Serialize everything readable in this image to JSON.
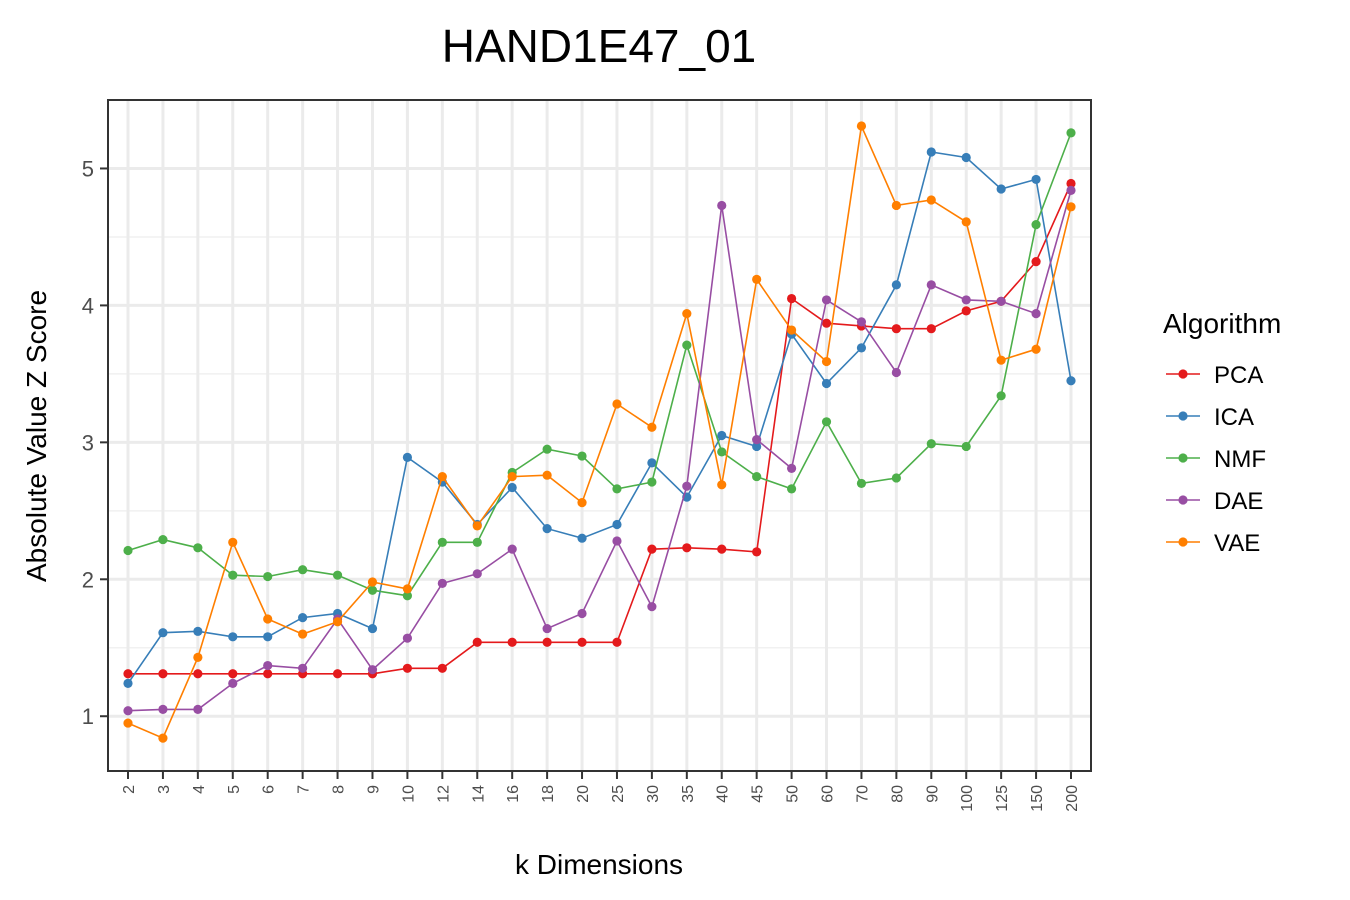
{
  "chart_data": {
    "type": "line",
    "title": "HAND1E47_01",
    "xlabel": "k Dimensions",
    "ylabel": "Absolute Value Z Score",
    "categories": [
      "2",
      "3",
      "4",
      "5",
      "6",
      "7",
      "8",
      "9",
      "10",
      "12",
      "14",
      "16",
      "18",
      "20",
      "25",
      "30",
      "35",
      "40",
      "45",
      "50",
      "60",
      "70",
      "80",
      "90",
      "100",
      "125",
      "150",
      "200"
    ],
    "ylim": [
      0.6,
      5.5
    ],
    "yticks": [
      1,
      2,
      3,
      4,
      5
    ],
    "grid": true,
    "legend": {
      "title": "Algorithm",
      "placement": "right"
    },
    "series": [
      {
        "name": "PCA",
        "color": "#e41a1c",
        "values": [
          1.31,
          1.31,
          1.31,
          1.31,
          1.31,
          1.31,
          1.31,
          1.31,
          1.35,
          1.35,
          1.54,
          1.54,
          1.54,
          1.54,
          1.54,
          2.22,
          2.23,
          2.22,
          2.2,
          4.05,
          3.87,
          3.85,
          3.83,
          3.83,
          3.96,
          4.03,
          4.32,
          4.89
        ]
      },
      {
        "name": "ICA",
        "color": "#377eb8",
        "values": [
          1.24,
          1.61,
          1.62,
          1.58,
          1.58,
          1.72,
          1.75,
          1.64,
          2.89,
          2.71,
          2.4,
          2.67,
          2.37,
          2.3,
          2.4,
          2.85,
          2.6,
          3.05,
          2.97,
          3.79,
          3.43,
          3.69,
          4.15,
          5.12,
          5.08,
          4.85,
          4.92,
          3.45
        ]
      },
      {
        "name": "NMF",
        "color": "#4daf4a",
        "values": [
          2.21,
          2.29,
          2.23,
          2.03,
          2.02,
          2.07,
          2.03,
          1.92,
          1.88,
          2.27,
          2.27,
          2.78,
          2.95,
          2.9,
          2.66,
          2.71,
          3.71,
          2.93,
          2.75,
          2.66,
          3.15,
          2.7,
          2.74,
          2.99,
          2.97,
          3.34,
          4.59,
          5.26
        ]
      },
      {
        "name": "DAE",
        "color": "#984ea3",
        "values": [
          1.04,
          1.05,
          1.05,
          1.24,
          1.37,
          1.35,
          1.71,
          1.34,
          1.57,
          1.97,
          2.04,
          2.22,
          1.64,
          1.75,
          2.28,
          1.8,
          2.68,
          4.73,
          3.02,
          2.81,
          4.04,
          3.88,
          3.51,
          4.15,
          4.04,
          4.03,
          3.94,
          4.84
        ]
      },
      {
        "name": "VAE",
        "color": "#ff7f00",
        "values": [
          0.95,
          0.84,
          1.43,
          2.27,
          1.71,
          1.6,
          1.69,
          1.98,
          1.93,
          2.75,
          2.39,
          2.75,
          2.76,
          2.56,
          3.28,
          3.11,
          3.94,
          2.69,
          4.19,
          3.82,
          3.59,
          5.31,
          4.73,
          4.77,
          4.61,
          3.6,
          3.68,
          4.72
        ]
      }
    ]
  }
}
